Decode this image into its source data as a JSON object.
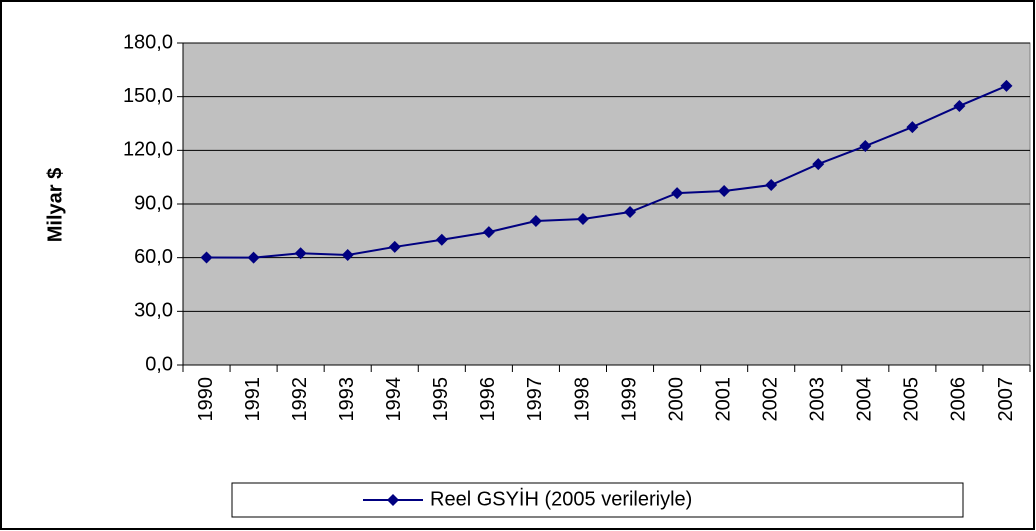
{
  "chart_data": {
    "type": "line",
    "y_label": "Milyar $",
    "categories": [
      "1990",
      "1991",
      "1992",
      "1993",
      "1994",
      "1995",
      "1996",
      "1997",
      "1998",
      "1999",
      "2000",
      "2001",
      "2002",
      "2003",
      "2004",
      "2005",
      "2006",
      "2007"
    ],
    "series": [
      {
        "name": "Reel GSYİH (2005 verileriyle)",
        "color": "#000080",
        "values": [
          60.1,
          60.0,
          62.5,
          61.5,
          66.0,
          70.0,
          74.3,
          80.5,
          81.6,
          85.5,
          96.1,
          97.3,
          100.6,
          112.3,
          122.4,
          133.0,
          144.8,
          156.0
        ]
      }
    ],
    "ylim": [
      0,
      180
    ],
    "yticks": [
      {
        "value": 0,
        "label": "0,0"
      },
      {
        "value": 30,
        "label": "30,0"
      },
      {
        "value": 60,
        "label": "60,0"
      },
      {
        "value": 90,
        "label": "90,0"
      },
      {
        "value": 120,
        "label": "120,0"
      },
      {
        "value": 150,
        "label": "150,0"
      },
      {
        "value": 180,
        "label": "180,0"
      }
    ],
    "grid": true,
    "legend": "bottom",
    "plot_background": "#c0c0c0"
  }
}
